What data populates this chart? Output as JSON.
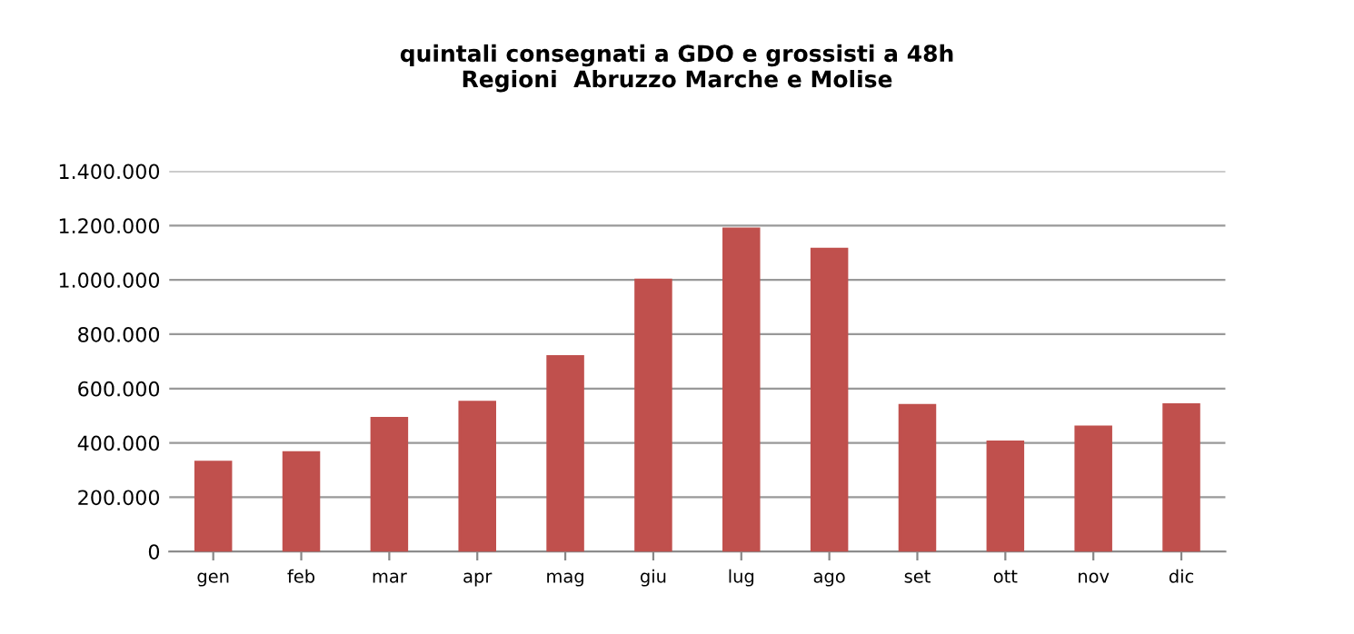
{
  "chart_data": {
    "type": "bar",
    "title": "quintali consegnati a GDO e grossisti a 48h\nRegioni  Abruzzo Marche e Molise",
    "categories": [
      "gen",
      "feb",
      "mar",
      "apr",
      "mag",
      "giu",
      "lug",
      "ago",
      "set",
      "ott",
      "nov",
      "dic"
    ],
    "values": [
      330000,
      365000,
      491000,
      550000,
      718000,
      1000000,
      1188000,
      1114000,
      539000,
      404000,
      459000,
      541000
    ],
    "color": "#c0504d",
    "ylim": [
      0,
      1400000
    ],
    "yticks": [
      0,
      {
        "value": 200000,
        "label": "200.000"
      },
      {
        "value": 400000,
        "label": "400.000"
      },
      {
        "value": 600000,
        "label": "600.000"
      },
      {
        "value": 800000,
        "label": "800.000"
      },
      {
        "value": 1000000,
        "label": "1.000.000"
      },
      {
        "value": 1200000,
        "label": "1.200.000"
      },
      {
        "value": 1400000,
        "label": "1.400.000"
      }
    ],
    "grid": "y"
  }
}
